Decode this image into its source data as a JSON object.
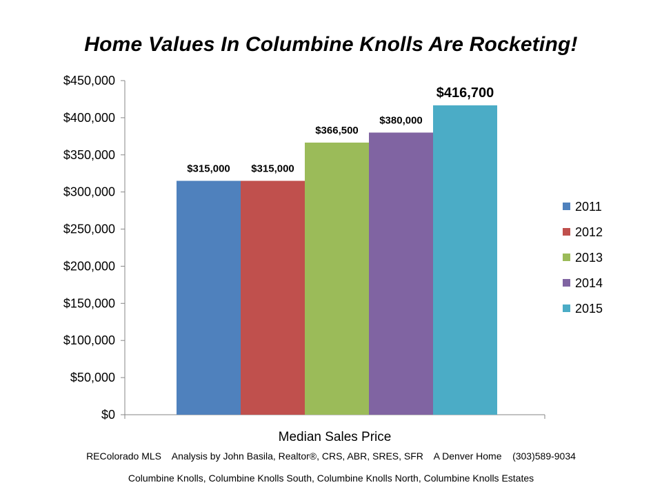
{
  "title": "Home Values In Columbine Knolls Are Rocketing!",
  "chart_data": {
    "type": "bar",
    "title": "Home Values In Columbine Knolls Are Rocketing!",
    "categories": [
      "Median Sales Price"
    ],
    "xlabel": "Median Sales Price",
    "ylabel": "",
    "ylim": [
      0,
      450000
    ],
    "yticks": [
      0,
      50000,
      100000,
      150000,
      200000,
      250000,
      300000,
      350000,
      400000,
      450000
    ],
    "ytick_labels": [
      "$0",
      "$50,000",
      "$100,000",
      "$150,000",
      "$200,000",
      "$250,000",
      "$300,000",
      "$350,000",
      "$400,000",
      "$450,000"
    ],
    "grid": false,
    "legend_position": "right",
    "series": [
      {
        "name": "2011",
        "values": [
          315000
        ],
        "label": "$315,000",
        "color": "#4f81bd"
      },
      {
        "name": "2012",
        "values": [
          315000
        ],
        "label": "$315,000",
        "color": "#c0504d"
      },
      {
        "name": "2013",
        "values": [
          366500
        ],
        "label": "$366,500",
        "color": "#9bbb59"
      },
      {
        "name": "2014",
        "values": [
          380000
        ],
        "label": "$380,000",
        "color": "#8064a2"
      },
      {
        "name": "2015",
        "values": [
          416700
        ],
        "label": "$416,700",
        "color": "#4bacc6"
      }
    ]
  },
  "footer": {
    "line1": "REColorado MLS    Analysis by John Basila, Realtor®, CRS, ABR, SRES, SFR    A Denver Home    (303)589-9034",
    "line2": "Columbine Knolls, Columbine Knolls South, Columbine Knolls North, Columbine Knolls Estates"
  }
}
